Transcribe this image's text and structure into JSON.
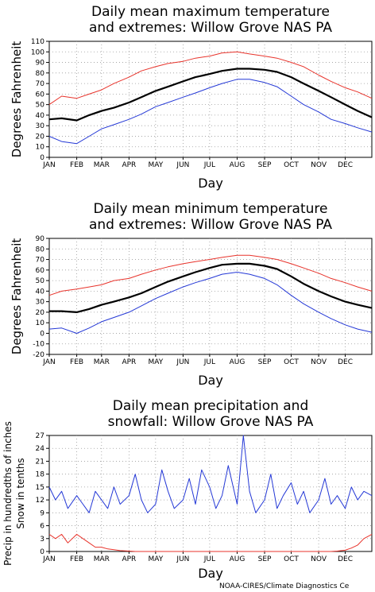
{
  "page": {
    "credit": "NOAA-CIRES/Climate Diagnostics Ce"
  },
  "chart_data": [
    {
      "type": "line",
      "title": [
        "Daily mean maximum temperature",
        "and extremes: Willow Grove NAS PA"
      ],
      "xlabel": "Day",
      "ylabel": "Degrees Fahrenheit",
      "ylim": [
        0,
        110
      ],
      "yticks": [
        0,
        10,
        20,
        30,
        40,
        50,
        60,
        70,
        80,
        90,
        100,
        110
      ],
      "x_tick_labels": [
        "JAN",
        "FEB",
        "MAR",
        "APR",
        "MAY",
        "JUN",
        "JUL",
        "AUG",
        "SEP",
        "OCT",
        "NOV",
        "DEC"
      ],
      "grid": true,
      "x_days": [
        1,
        15,
        32,
        46,
        60,
        74,
        91,
        105,
        121,
        135,
        152,
        166,
        182,
        196,
        213,
        227,
        244,
        258,
        274,
        288,
        305,
        319,
        335,
        349,
        365
      ],
      "series": [
        {
          "color": "#e8332b",
          "values": [
            50,
            58,
            56,
            60,
            64,
            70,
            76,
            82,
            86,
            89,
            91,
            94,
            96,
            99,
            100,
            98,
            96,
            94,
            90,
            86,
            78,
            72,
            66,
            62,
            56
          ]
        },
        {
          "color": "#000000",
          "values": [
            36,
            37,
            35,
            40,
            44,
            47,
            52,
            57,
            63,
            67,
            72,
            76,
            79,
            82,
            84,
            84,
            83,
            81,
            76,
            70,
            63,
            57,
            50,
            44,
            38
          ]
        },
        {
          "color": "#2438d6",
          "values": [
            20,
            15,
            13,
            20,
            27,
            31,
            36,
            41,
            48,
            52,
            57,
            61,
            66,
            70,
            74,
            74,
            71,
            67,
            58,
            50,
            43,
            36,
            32,
            28,
            24
          ]
        }
      ]
    },
    {
      "type": "line",
      "title": [
        "Daily mean minimum temperature",
        "and extremes: Willow Grove NAS PA"
      ],
      "xlabel": "Day",
      "ylabel": "Degrees Fahrenheit",
      "ylim": [
        -20,
        90
      ],
      "yticks": [
        -20,
        -10,
        0,
        10,
        20,
        30,
        40,
        50,
        60,
        70,
        80,
        90
      ],
      "x_tick_labels": [
        "JAN",
        "FEB",
        "MAR",
        "APR",
        "MAY",
        "JUN",
        "JUL",
        "AUG",
        "SEP",
        "OCT",
        "NOV",
        "DEC"
      ],
      "grid": true,
      "x_days": [
        1,
        15,
        32,
        46,
        60,
        74,
        91,
        105,
        121,
        135,
        152,
        166,
        182,
        196,
        213,
        227,
        244,
        258,
        274,
        288,
        305,
        319,
        335,
        349,
        365
      ],
      "series": [
        {
          "color": "#e8332b",
          "values": [
            36,
            40,
            42,
            44,
            46,
            50,
            52,
            56,
            60,
            63,
            66,
            68,
            70,
            72,
            74,
            74,
            72,
            70,
            66,
            62,
            57,
            52,
            48,
            44,
            40
          ]
        },
        {
          "color": "#000000",
          "values": [
            21,
            21,
            20,
            23,
            27,
            30,
            34,
            38,
            44,
            49,
            54,
            58,
            62,
            65,
            66,
            66,
            64,
            61,
            54,
            47,
            40,
            35,
            30,
            27,
            24
          ]
        },
        {
          "color": "#2438d6",
          "values": [
            4,
            5,
            0,
            5,
            11,
            15,
            20,
            26,
            33,
            38,
            44,
            48,
            52,
            56,
            58,
            56,
            52,
            46,
            36,
            28,
            20,
            14,
            8,
            4,
            1
          ]
        }
      ]
    },
    {
      "type": "line",
      "title": [
        "Daily mean precipitation and",
        "snowfall: Willow Grove NAS PA"
      ],
      "xlabel": "Day",
      "ylabel": [
        "Precip in hundredths of inches",
        "Snow in tenths"
      ],
      "ylim": [
        0,
        27
      ],
      "yticks": [
        0,
        3,
        6,
        9,
        12,
        15,
        18,
        21,
        24,
        27
      ],
      "x_tick_labels": [
        "JAN",
        "FEB",
        "MAR",
        "APR",
        "MAY",
        "JUN",
        "JUL",
        "AUG",
        "SEP",
        "OCT",
        "NOV",
        "DEC"
      ],
      "grid": true,
      "x_days": [
        1,
        8,
        15,
        22,
        32,
        39,
        46,
        53,
        60,
        67,
        74,
        81,
        91,
        98,
        105,
        112,
        121,
        128,
        135,
        142,
        152,
        159,
        166,
        173,
        182,
        189,
        196,
        203,
        213,
        220,
        227,
        234,
        244,
        251,
        258,
        265,
        274,
        281,
        288,
        295,
        305,
        312,
        319,
        326,
        335,
        342,
        349,
        356,
        365
      ],
      "series": [
        {
          "color": "#2438d6",
          "values": [
            15,
            12,
            14,
            10,
            13,
            11,
            9,
            14,
            12,
            10,
            15,
            11,
            13,
            18,
            12,
            9,
            11,
            19,
            14,
            10,
            12,
            17,
            11,
            19,
            15,
            10,
            13,
            20,
            11,
            27,
            14,
            9,
            12,
            18,
            10,
            13,
            16,
            11,
            14,
            9,
            12,
            17,
            11,
            13,
            10,
            15,
            12,
            14,
            13
          ]
        },
        {
          "color": "#e8332b",
          "values": [
            4,
            3,
            4,
            2,
            4,
            3,
            2,
            1,
            1,
            0.6,
            0.4,
            0.2,
            0.1,
            0,
            0,
            0,
            0,
            0,
            0,
            0,
            0,
            0,
            0,
            0,
            0,
            0,
            0,
            0,
            0,
            0,
            0,
            0,
            0,
            0,
            0,
            0,
            0,
            0,
            0,
            0,
            0,
            0,
            0,
            0.1,
            0.3,
            0.8,
            1.5,
            3,
            4
          ]
        }
      ]
    }
  ]
}
